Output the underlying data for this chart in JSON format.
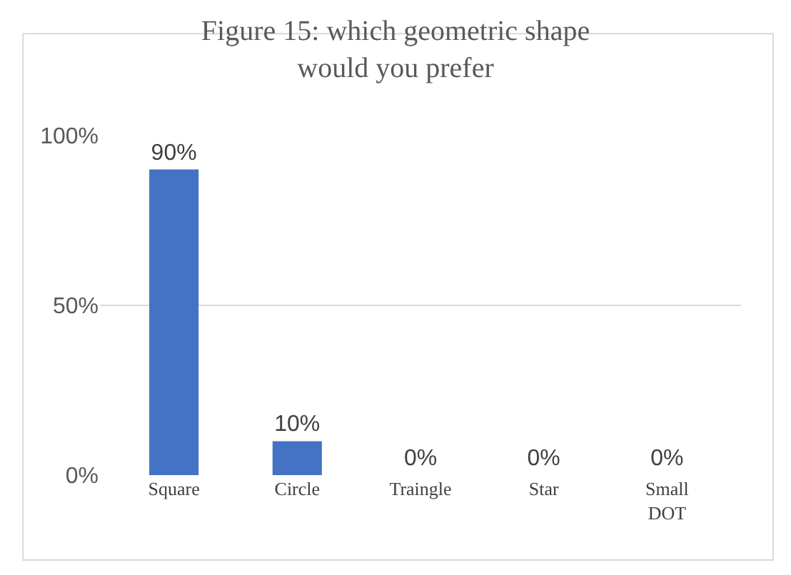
{
  "chart_data": {
    "type": "bar",
    "title": "Figure 15: which geometric shape would you prefer",
    "categories": [
      "Square",
      "Circle",
      "Traingle",
      "Star",
      "Small DOT"
    ],
    "values": [
      90,
      10,
      0,
      0,
      0
    ],
    "value_labels": [
      "90%",
      "10%",
      "0%",
      "0%",
      "0%"
    ],
    "color": "#4472c4",
    "ylim": [
      0,
      100
    ],
    "yticks": [
      {
        "value": 0,
        "label": "0%"
      },
      {
        "value": 50,
        "label": "50%"
      },
      {
        "value": 100,
        "label": "100%"
      }
    ],
    "grid": "y",
    "legend": false
  }
}
